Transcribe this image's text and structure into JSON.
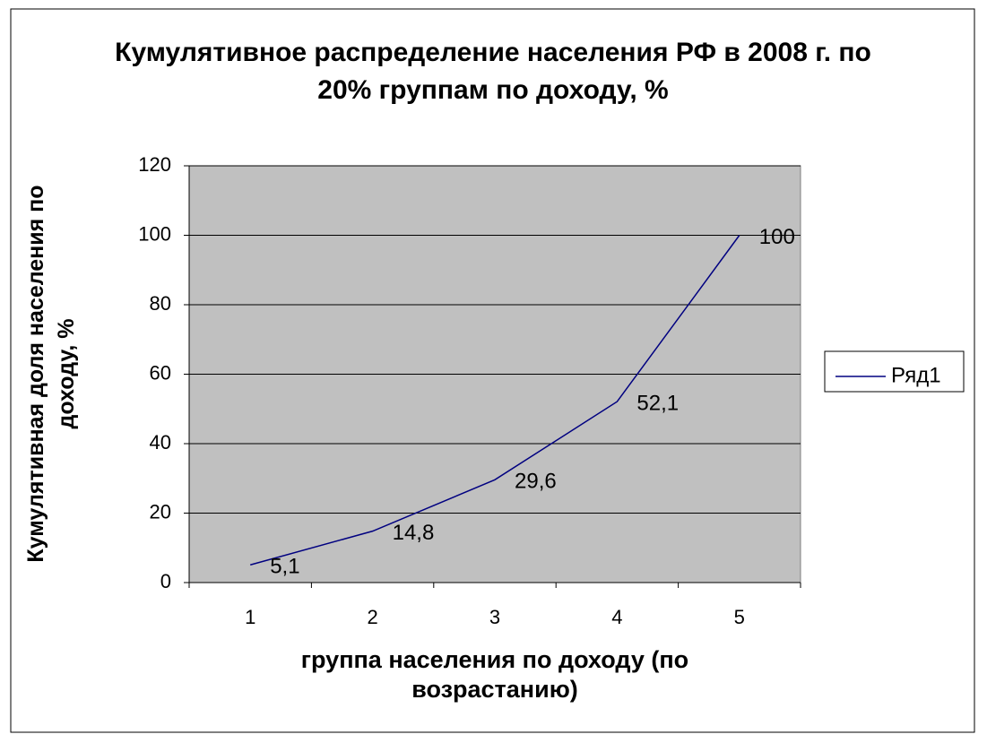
{
  "chart_data": {
    "type": "line",
    "title": "Кумулятивное распределение населения РФ в 2008 г. по 20% группам по доходу, %",
    "x_label": "группа населения по доходу (по возрастанию)",
    "y_label": "Кумулятивная доля населения по доходу, %",
    "categories": [
      "1",
      "2",
      "3",
      "4",
      "5"
    ],
    "series": [
      {
        "name": "Ряд1",
        "color": "#000080",
        "values": [
          5.1,
          14.8,
          29.6,
          52.1,
          100
        ],
        "value_labels": [
          "5,1",
          "14,8",
          "29,6",
          "52,1",
          "100"
        ]
      }
    ],
    "ylim": [
      0,
      120
    ],
    "yticks": [
      0,
      20,
      40,
      60,
      80,
      100,
      120
    ],
    "grid": true,
    "legend": "right"
  }
}
